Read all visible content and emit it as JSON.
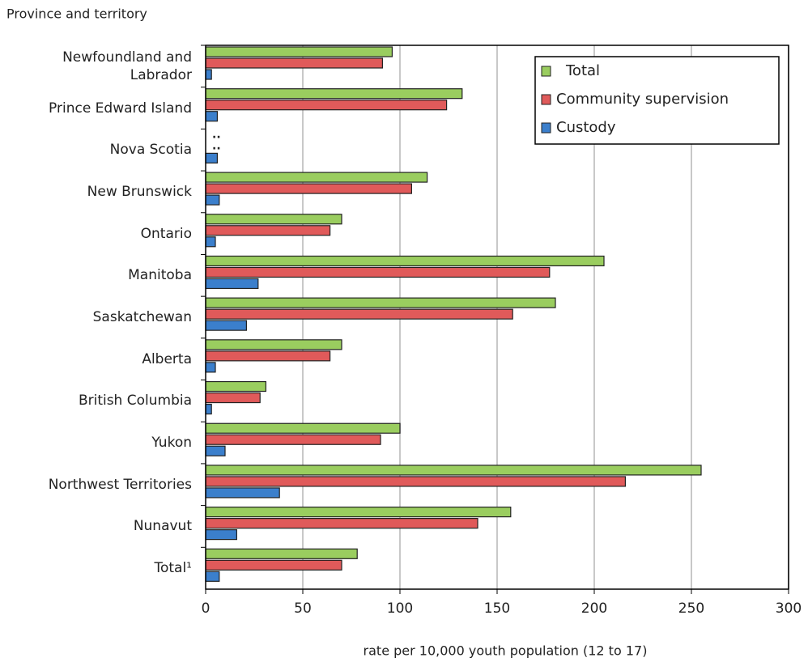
{
  "chart_data": {
    "type": "bar",
    "orientation": "horizontal",
    "y_axis_title": "Province and territory",
    "x_axis_title": "rate per 10,000 youth population (12 to 17)",
    "categories": [
      "Newfoundland and\nLabrador",
      "Prince Edward Island",
      "Nova Scotia",
      "New Brunswick",
      "Ontario",
      "Manitoba",
      "Saskatchewan",
      "Alberta",
      "British Columbia",
      "Yukon",
      "Northwest Territories",
      "Nunavut",
      "Total¹"
    ],
    "series": [
      {
        "name": "Total",
        "color": "#9acd5f",
        "values": [
          96,
          132,
          null,
          114,
          70,
          205,
          180,
          70,
          31,
          100,
          255,
          157,
          78
        ],
        "value_labels": [
          null,
          null,
          "..",
          null,
          null,
          null,
          null,
          null,
          null,
          null,
          null,
          null,
          null
        ]
      },
      {
        "name": "Community supervision",
        "color": "#e05a5a",
        "values": [
          91,
          124,
          null,
          106,
          64,
          177,
          158,
          64,
          28,
          90,
          216,
          140,
          70
        ],
        "value_labels": [
          null,
          null,
          "..",
          null,
          null,
          null,
          null,
          null,
          null,
          null,
          null,
          null,
          null
        ]
      },
      {
        "name": "Custody",
        "color": "#3b7fcc",
        "values": [
          3,
          6,
          6,
          7,
          5,
          27,
          21,
          5,
          3,
          10,
          38,
          16,
          7
        ]
      }
    ],
    "xlim": [
      0,
      300
    ],
    "xticks": [
      0,
      50,
      100,
      150,
      200,
      250,
      300
    ],
    "grid": true,
    "legend": "top-right"
  }
}
